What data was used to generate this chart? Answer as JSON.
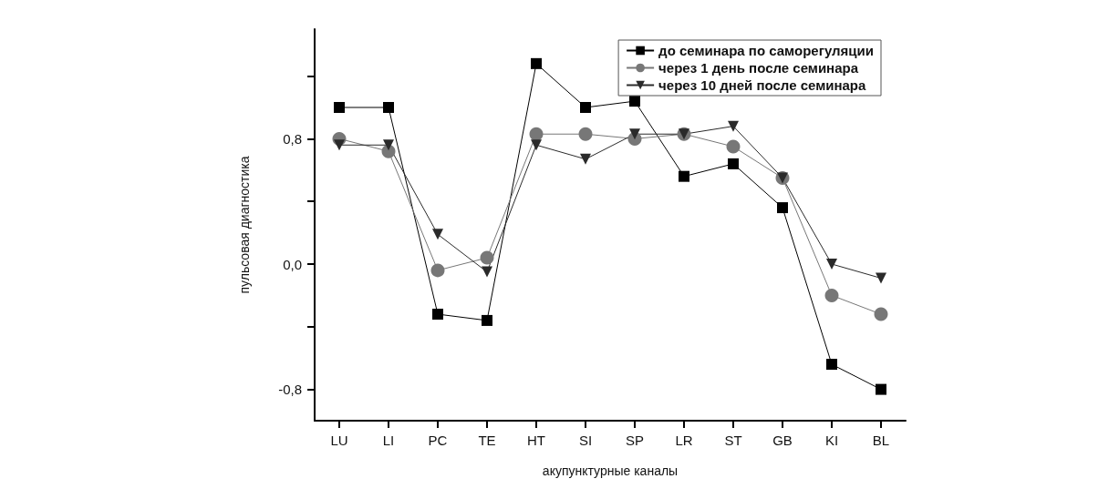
{
  "chart_data": {
    "type": "line",
    "xlabel": "акупунктурные каналы",
    "ylabel": "пульсовая диагностика",
    "categories": [
      "LU",
      "LI",
      "PC",
      "TE",
      "HT",
      "SI",
      "SP",
      "LR",
      "ST",
      "GB",
      "KI",
      "BL"
    ],
    "series": [
      {
        "name": "до семинара по саморегуляции",
        "color": "#000000",
        "marker": "square",
        "values": [
          1.0,
          1.0,
          -0.32,
          -0.36,
          1.28,
          1.0,
          1.04,
          0.56,
          0.64,
          0.36,
          -0.64,
          -0.8
        ]
      },
      {
        "name": "через 1 день после семинара",
        "color": "#777777",
        "marker": "circle",
        "values": [
          0.8,
          0.72,
          -0.04,
          0.04,
          0.83,
          0.83,
          0.8,
          0.83,
          0.75,
          0.55,
          -0.2,
          -0.32
        ]
      },
      {
        "name": "через 10 дней после семинара",
        "color": "#2a2a2a",
        "marker": "triangle",
        "values": [
          0.76,
          0.76,
          0.19,
          -0.05,
          0.76,
          0.67,
          0.83,
          0.83,
          0.88,
          0.55,
          0.0,
          -0.09
        ]
      }
    ],
    "ylim": [
      -1.0,
      1.5
    ],
    "yticks": [
      {
        "value": -0.8,
        "label": "-0,8"
      },
      {
        "value": -0.4,
        "label": null
      },
      {
        "value": 0,
        "label": "0,0"
      },
      {
        "value": 0.4,
        "label": null
      },
      {
        "value": 0.8,
        "label": "0,8"
      },
      {
        "value": 1.2,
        "label": null
      }
    ],
    "grid": false,
    "legend": "top right",
    "line_style": "solid"
  }
}
